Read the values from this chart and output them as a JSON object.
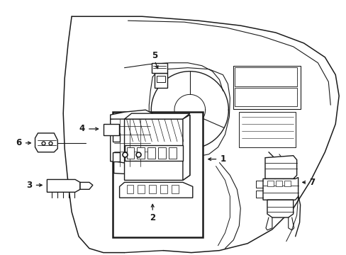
{
  "background_color": "#ffffff",
  "line_color": "#1a1a1a",
  "fig_width": 4.89,
  "fig_height": 3.6,
  "dpi": 100,
  "label_fontsize": 8.5
}
